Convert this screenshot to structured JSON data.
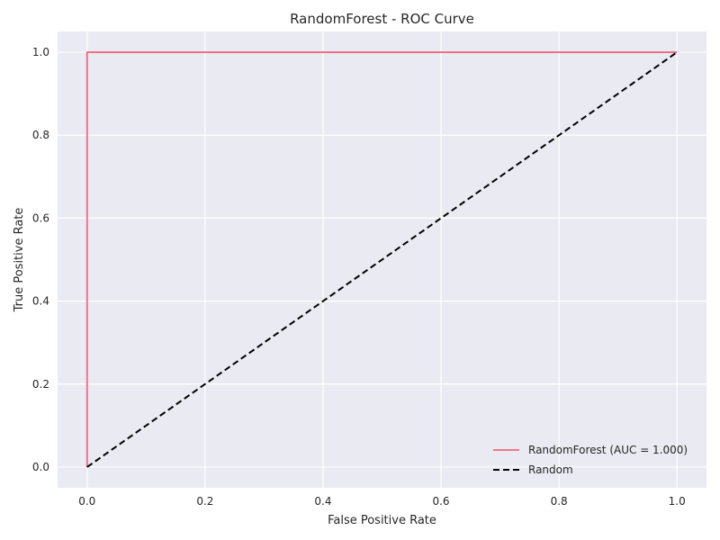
{
  "chart_data": {
    "type": "line",
    "title": "RandomForest - ROC Curve",
    "xlabel": "False Positive Rate",
    "ylabel": "True Positive Rate",
    "xlim": [
      -0.05,
      1.05
    ],
    "ylim": [
      -0.05,
      1.05
    ],
    "xticks": [
      "0.0",
      "0.2",
      "0.4",
      "0.6",
      "0.8",
      "1.0"
    ],
    "yticks": [
      "0.0",
      "0.2",
      "0.4",
      "0.6",
      "0.8",
      "1.0"
    ],
    "grid": true,
    "legend_position": "lower-right",
    "series": [
      {
        "name": "RandomForest (AUC = 1.000)",
        "color": "#f0687e",
        "style": "solid",
        "x": [
          0.0,
          0.0,
          1.0
        ],
        "y": [
          0.0,
          1.0,
          1.0
        ]
      },
      {
        "name": "Random",
        "color": "#000000",
        "style": "dashed",
        "x": [
          0.0,
          1.0
        ],
        "y": [
          0.0,
          1.0
        ]
      }
    ],
    "colors": {
      "plot_background": "#eaeaf2",
      "grid": "#ffffff"
    }
  }
}
